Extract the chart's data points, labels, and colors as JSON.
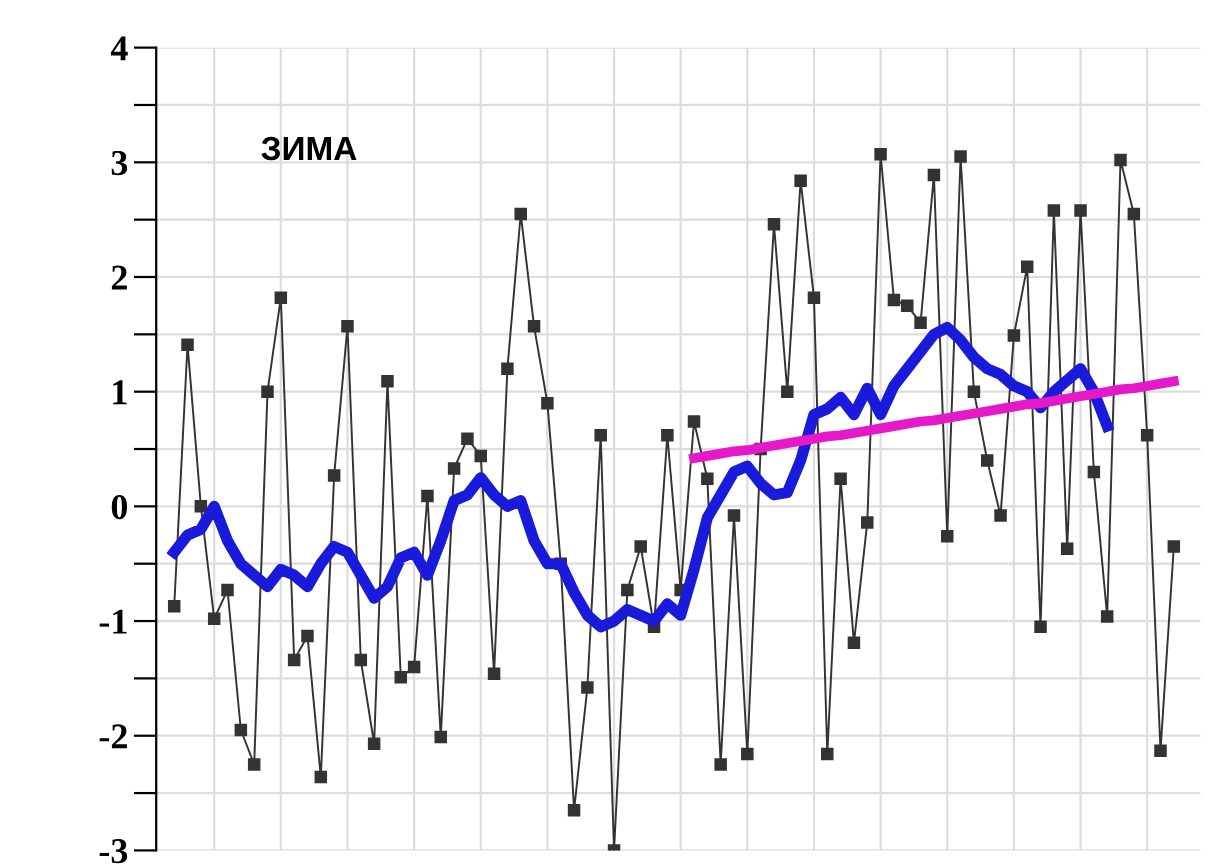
{
  "chart_data": {
    "type": "line",
    "annotations": [
      "ЗИМА"
    ],
    "categories": [
      null,
      null,
      null,
      null,
      null,
      null,
      null,
      null,
      null,
      null,
      null,
      null,
      null,
      null,
      null,
      null,
      null,
      null,
      null,
      null,
      null,
      null,
      null,
      null,
      null,
      null,
      null,
      null,
      null,
      null,
      null,
      null,
      null,
      null,
      null,
      null,
      null,
      null,
      null,
      null,
      null,
      null,
      null,
      null,
      null,
      null,
      null,
      null,
      null,
      null,
      null,
      null,
      null,
      null,
      null,
      null,
      null,
      null,
      null,
      null,
      null,
      null,
      null,
      null,
      null,
      null,
      null,
      null,
      null,
      null,
      null,
      null,
      null,
      null,
      null,
      null
    ],
    "ylim": [
      -3,
      4
    ],
    "yticks": [
      -3,
      {
        "value": -2.5,
        "label": null
      },
      -2,
      {
        "value": -1.5,
        "label": null
      },
      -1,
      {
        "value": -0.5,
        "label": null
      },
      0,
      {
        "value": 0.5,
        "label": null
      },
      1,
      {
        "value": 1.5,
        "label": null
      },
      2,
      {
        "value": 2.5,
        "label": null
      },
      3,
      {
        "value": 3.5,
        "label": null
      },
      4
    ],
    "tick_labels": "y",
    "grid": true,
    "series": [
      {
        "color": "#333333",
        "marker": "square",
        "values": [
          -0.87,
          1.41,
          0.0,
          -0.98,
          -0.73,
          -1.95,
          -2.25,
          1.0,
          1.82,
          -1.34,
          -1.13,
          -2.36,
          0.27,
          1.57,
          -1.34,
          -2.07,
          1.09,
          -1.49,
          -1.4,
          0.09,
          -2.01,
          0.33,
          0.59,
          0.44,
          -1.46,
          1.2,
          2.55,
          1.57,
          0.9,
          -0.5,
          -2.65,
          -1.58,
          0.62,
          -3.0,
          -0.73,
          -0.35,
          -1.05,
          0.62,
          -0.73,
          0.74,
          0.24,
          -2.25,
          -0.08,
          -2.16,
          0.5,
          2.46,
          1.0,
          2.84,
          1.82,
          -2.16,
          0.24,
          -1.19,
          -0.14,
          3.07,
          1.8,
          1.75,
          1.6,
          2.89,
          -0.26,
          3.05,
          1.0,
          0.4,
          -0.08,
          1.49,
          2.09,
          -1.05,
          2.58,
          -0.37,
          2.58,
          0.3,
          -0.96,
          3.02,
          2.55,
          0.62,
          -2.13,
          -0.35
        ]
      },
      {
        "color": "#1a1adb",
        "values": [
          -0.4,
          -0.25,
          -0.2,
          0.0,
          -0.3,
          -0.5,
          -0.6,
          -0.7,
          -0.55,
          -0.6,
          -0.7,
          -0.5,
          -0.35,
          -0.4,
          -0.6,
          -0.8,
          -0.7,
          -0.45,
          -0.4,
          -0.6,
          -0.3,
          0.05,
          0.1,
          0.25,
          0.1,
          0.0,
          0.05,
          -0.3,
          -0.5,
          -0.5,
          -0.75,
          -0.95,
          -1.05,
          -1.0,
          -0.9,
          -0.95,
          -1.0,
          -0.85,
          -0.95,
          -0.55,
          -0.1,
          0.1,
          0.3,
          0.35,
          0.2,
          0.1,
          0.12,
          0.4,
          0.8,
          0.85,
          0.95,
          0.8,
          1.03,
          0.8,
          1.05,
          1.2,
          1.35,
          1.5,
          1.56,
          1.45,
          1.3,
          1.2,
          1.15,
          1.05,
          1.0,
          0.86,
          1.0,
          1.1,
          1.2,
          1.0,
          0.7,
          null,
          null,
          null,
          null,
          null
        ]
      },
      {
        "color": "#e619c8",
        "values": [
          null,
          null,
          null,
          null,
          null,
          null,
          null,
          null,
          null,
          null,
          null,
          null,
          null,
          null,
          null,
          null,
          null,
          null,
          null,
          null,
          null,
          null,
          null,
          null,
          null,
          null,
          null,
          null,
          null,
          null,
          null,
          null,
          null,
          null,
          null,
          null,
          null,
          null,
          null,
          0.42,
          0.44,
          0.46,
          0.48,
          0.49,
          0.51,
          0.53,
          0.55,
          0.57,
          0.59,
          0.61,
          0.62,
          0.64,
          0.66,
          0.68,
          0.7,
          0.72,
          0.74,
          0.75,
          0.77,
          0.79,
          0.81,
          0.83,
          0.85,
          0.87,
          0.89,
          0.9,
          0.92,
          0.94,
          0.96,
          0.98,
          1.0,
          1.02,
          1.03,
          1.05,
          1.07,
          1.09
        ]
      }
    ]
  }
}
